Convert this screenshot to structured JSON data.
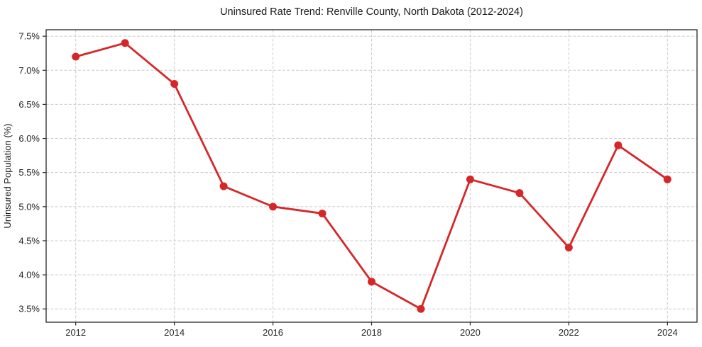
{
  "page": {
    "background": "#ffffff"
  },
  "chart_data": {
    "type": "line",
    "title": "Uninsured Rate Trend: Renville County, North Dakota (2012-2024)",
    "xlabel": "",
    "ylabel": "Uninsured Population (%)",
    "x": [
      2012,
      2013,
      2014,
      2015,
      2016,
      2017,
      2018,
      2019,
      2020,
      2021,
      2022,
      2023,
      2024
    ],
    "y": [
      7.2,
      7.4,
      6.8,
      5.3,
      5.0,
      4.9,
      3.9,
      3.5,
      5.4,
      5.2,
      4.4,
      5.9,
      5.4
    ],
    "series": [
      {
        "name": "Uninsured Population (%)",
        "values": [
          7.2,
          7.4,
          6.8,
          5.3,
          5.0,
          4.9,
          3.9,
          3.5,
          5.4,
          5.2,
          4.4,
          5.9,
          5.4
        ]
      }
    ],
    "xticks": [
      2012,
      2014,
      2016,
      2018,
      2020,
      2022,
      2024
    ],
    "xtick_labels": [
      "2012",
      "2014",
      "2016",
      "2018",
      "2020",
      "2022",
      "2024"
    ],
    "yticks": [
      3.5,
      4.0,
      4.5,
      5.0,
      5.5,
      6.0,
      6.5,
      7.0,
      7.5
    ],
    "ytick_labels": [
      "3.5%",
      "4.0%",
      "4.5%",
      "5.0%",
      "5.5%",
      "6.0%",
      "6.5%",
      "7.0%",
      "7.5%"
    ],
    "xlim": [
      2011.4,
      2024.6
    ],
    "ylim": [
      3.305,
      7.595
    ],
    "grid": true,
    "grid_style": "dashed",
    "legend": "none",
    "line_color": "#d62728",
    "grid_color": "#cccccc",
    "marker": "circle"
  }
}
